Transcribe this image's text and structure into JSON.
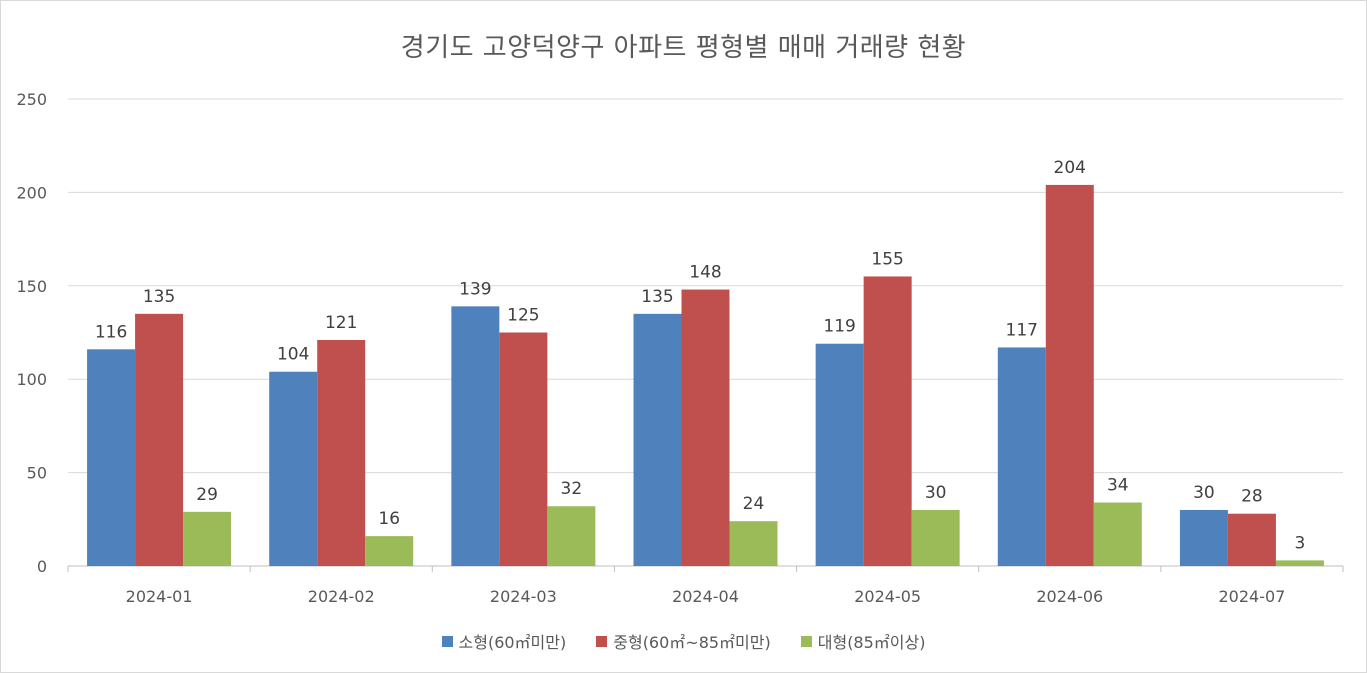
{
  "chart_data": {
    "type": "bar",
    "title": "경기도 고양덕양구 아파트 평형별 매매 거래량 현황",
    "categories": [
      "2024-01",
      "2024-02",
      "2024-03",
      "2024-04",
      "2024-05",
      "2024-06",
      "2024-07"
    ],
    "series": [
      {
        "name": "소형(60㎡미만)",
        "color": "#4f81bd",
        "values": [
          116,
          104,
          139,
          135,
          119,
          117,
          30
        ]
      },
      {
        "name": "중형(60㎡~85㎡미만)",
        "color": "#c0504d",
        "values": [
          135,
          121,
          125,
          148,
          155,
          204,
          28
        ]
      },
      {
        "name": "대형(85㎡이상)",
        "color": "#9bbb59",
        "values": [
          29,
          16,
          32,
          24,
          30,
          34,
          3
        ]
      }
    ],
    "ylim": [
      0,
      250
    ],
    "yticks": [
      0,
      50,
      100,
      150,
      200,
      250
    ],
    "xlabel": "",
    "ylabel": "",
    "grid": true,
    "legend_position": "bottom",
    "data_labels": true
  }
}
